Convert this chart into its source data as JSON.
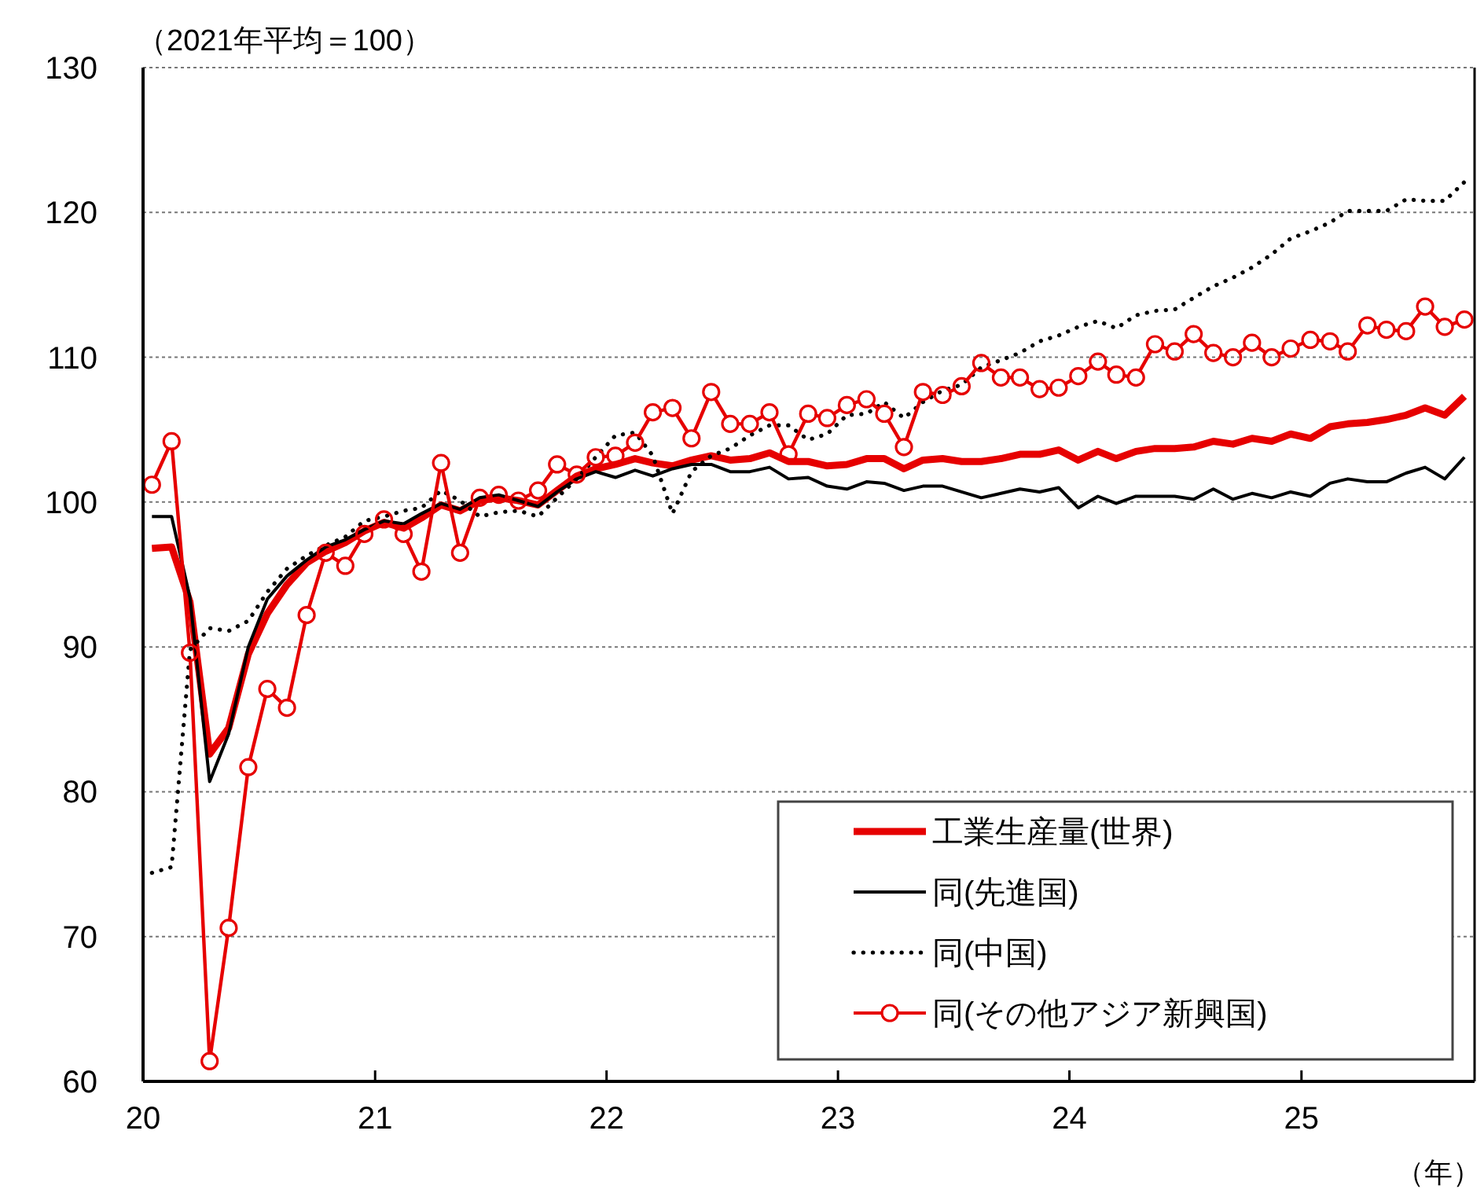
{
  "chart_data": {
    "type": "line",
    "ylabel": "（2021年平均＝100）",
    "xlabel": "（年）",
    "x": [
      "2020-01-15",
      "2020-02-15",
      "2020-03-15",
      "2020-04-15",
      "2020-05-15",
      "2020-06-15",
      "2020-07-15",
      "2020-08-15",
      "2020-09-15",
      "2020-10-15",
      "2020-11-15",
      "2020-12-15",
      "2021-01-15",
      "2021-02-15",
      "2021-03-15",
      "2021-04-15",
      "2021-05-15",
      "2021-06-15",
      "2021-07-15",
      "2021-08-15",
      "2021-09-15",
      "2021-10-15",
      "2021-11-15",
      "2021-12-15",
      "2022-01-15",
      "2022-02-15",
      "2022-03-15",
      "2022-04-15",
      "2022-05-15",
      "2022-06-15",
      "2022-07-15",
      "2022-08-15",
      "2022-09-15",
      "2022-10-15",
      "2022-11-15",
      "2022-12-15",
      "2023-01-15",
      "2023-02-15",
      "2023-03-15",
      "2023-04-15",
      "2023-05-15",
      "2023-06-15",
      "2023-07-15",
      "2023-08-15",
      "2023-09-15",
      "2023-10-15",
      "2023-11-15",
      "2023-12-15",
      "2024-01-15",
      "2024-02-15",
      "2024-03-15",
      "2024-04-15",
      "2024-05-15",
      "2024-06-15",
      "2024-07-15",
      "2024-08-15",
      "2024-09-15",
      "2024-10-15",
      "2024-11-15",
      "2024-12-15",
      "2025-01-15",
      "2025-02-15",
      "2025-03-15",
      "2025-04-15",
      "2025-05-15",
      "2025-06-15",
      "2025-07-15",
      "2025-08-15",
      "2025-09-15"
    ],
    "series": [
      {
        "name": "工業生産量(世界)",
        "color": "#e60000",
        "line_style": "solid",
        "marker": "none",
        "values": [
          96.8,
          96.9,
          93.1,
          82.6,
          84.4,
          89.5,
          92.3,
          94.3,
          95.8,
          96.6,
          97.2,
          98.0,
          98.6,
          98.2,
          98.9,
          99.8,
          99.4,
          100.1,
          100.3,
          100.1,
          99.8,
          100.8,
          101.8,
          102.3,
          102.6,
          103.0,
          102.7,
          102.5,
          102.9,
          103.2,
          102.9,
          103.0,
          103.4,
          102.8,
          102.8,
          102.5,
          102.6,
          103.0,
          103.0,
          102.3,
          102.9,
          103.0,
          102.8,
          102.8,
          103.0,
          103.3,
          103.3,
          103.6,
          102.9,
          103.5,
          103.0,
          103.5,
          103.7,
          103.7,
          103.8,
          104.2,
          104.0,
          104.4,
          104.2,
          104.7,
          104.4,
          105.2,
          105.4,
          105.5,
          105.7,
          106.0,
          106.5,
          106.0,
          107.3
        ]
      },
      {
        "name": "同(先進国)",
        "color": "#000000",
        "line_style": "solid",
        "marker": "none",
        "values": [
          99.0,
          99.0,
          93.4,
          80.7,
          84.0,
          90.0,
          93.3,
          94.9,
          96.0,
          96.9,
          97.4,
          98.1,
          98.7,
          98.5,
          99.2,
          99.9,
          99.5,
          100.3,
          100.5,
          100.1,
          99.7,
          100.7,
          101.6,
          102.1,
          101.7,
          102.2,
          101.8,
          102.3,
          102.6,
          102.6,
          102.1,
          102.1,
          102.4,
          101.6,
          101.7,
          101.1,
          100.9,
          101.4,
          101.3,
          100.8,
          101.1,
          101.1,
          100.7,
          100.3,
          100.6,
          100.9,
          100.7,
          101.0,
          99.6,
          100.4,
          99.9,
          100.4,
          100.4,
          100.4,
          100.2,
          100.9,
          100.2,
          100.6,
          100.3,
          100.7,
          100.4,
          101.3,
          101.6,
          101.4,
          101.4,
          102.0,
          102.4,
          101.6,
          103.1
        ]
      },
      {
        "name": "同(中国)",
        "color": "#000000",
        "line_style": "dotted",
        "marker": "none",
        "values": [
          74.4,
          74.8,
          89.8,
          91.3,
          91.1,
          91.8,
          93.8,
          95.4,
          96.3,
          97.0,
          97.6,
          98.7,
          99.0,
          99.4,
          99.6,
          100.8,
          100.1,
          99.0,
          99.3,
          99.4,
          99.0,
          100.3,
          101.6,
          103.1,
          104.6,
          104.8,
          103.2,
          99.2,
          102.1,
          103.2,
          103.7,
          104.6,
          105.3,
          105.3,
          104.3,
          104.7,
          106.0,
          106.1,
          106.9,
          105.8,
          106.9,
          107.7,
          108.1,
          109.3,
          109.8,
          110.3,
          111.1,
          111.5,
          112.1,
          112.5,
          112.0,
          112.9,
          113.2,
          113.3,
          114.1,
          114.9,
          115.5,
          116.2,
          117.1,
          118.2,
          118.7,
          119.3,
          120.1,
          120.1,
          120.1,
          120.9,
          120.8,
          120.8,
          122.1
        ]
      },
      {
        "name": "同(その他アジア新興国)",
        "color": "#e60000",
        "line_style": "solid",
        "marker": "circle",
        "values": [
          101.2,
          104.2,
          89.6,
          61.4,
          70.6,
          81.7,
          87.1,
          85.8,
          92.2,
          96.5,
          95.6,
          97.8,
          98.8,
          97.8,
          95.2,
          102.7,
          96.5,
          100.3,
          100.5,
          100.1,
          100.8,
          102.6,
          101.9,
          103.1,
          103.2,
          104.1,
          106.2,
          106.5,
          104.4,
          107.6,
          105.4,
          105.4,
          106.2,
          103.3,
          106.1,
          105.8,
          106.7,
          107.1,
          106.1,
          103.8,
          107.6,
          107.4,
          108.0,
          109.6,
          108.6,
          108.6,
          107.8,
          107.9,
          108.7,
          109.7,
          108.8,
          108.6,
          110.9,
          110.4,
          111.6,
          110.3,
          110.0,
          111.0,
          110.0,
          110.6,
          111.2,
          111.1,
          110.4,
          112.2,
          111.9,
          111.8,
          113.5,
          112.1,
          112.6
        ]
      }
    ],
    "xlim": [
      "2020-01-01",
      "2025-10-01"
    ],
    "xticks": [
      {
        "value": "2020-01-01",
        "label": "20"
      },
      {
        "value": "2021-01-01",
        "label": "21"
      },
      {
        "value": "2022-01-01",
        "label": "22"
      },
      {
        "value": "2023-01-01",
        "label": "23"
      },
      {
        "value": "2024-01-01",
        "label": "24"
      },
      {
        "value": "2025-01-01",
        "label": "25"
      }
    ],
    "ylim": [
      60,
      130
    ],
    "yticks": [
      60,
      70,
      80,
      90,
      100,
      110,
      120,
      130
    ],
    "grid": "y",
    "legend": "bottom right"
  }
}
